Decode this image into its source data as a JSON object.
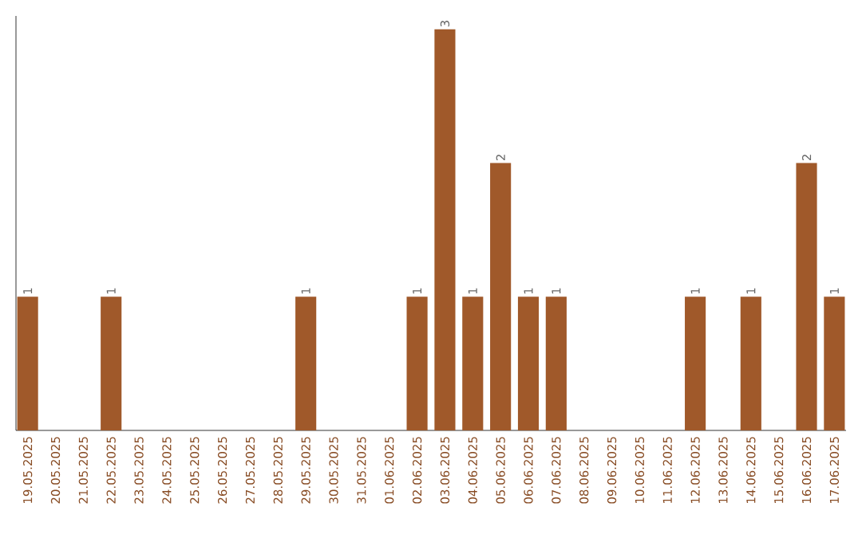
{
  "chart_data": {
    "type": "bar",
    "categories": [
      "19.05.2025",
      "20.05.2025",
      "21.05.2025",
      "22.05.2025",
      "23.05.2025",
      "24.05.2025",
      "25.05.2025",
      "26.05.2025",
      "27.05.2025",
      "28.05.2025",
      "29.05.2025",
      "30.05.2025",
      "31.05.2025",
      "01.06.2025",
      "02.06.2025",
      "03.06.2025",
      "04.06.2025",
      "05.06.2025",
      "06.06.2025",
      "07.06.2025",
      "08.06.2025",
      "09.06.2025",
      "10.06.2025",
      "11.06.2025",
      "12.06.2025",
      "13.06.2025",
      "14.06.2025",
      "15.06.2025",
      "16.06.2025",
      "17.06.2025"
    ],
    "values": [
      1,
      0,
      0,
      1,
      0,
      0,
      0,
      0,
      0,
      0,
      1,
      0,
      0,
      0,
      1,
      3,
      1,
      2,
      1,
      1,
      0,
      0,
      0,
      0,
      1,
      0,
      1,
      0,
      2,
      1
    ],
    "value_labels": [
      "1",
      null,
      null,
      "1",
      null,
      null,
      null,
      null,
      null,
      null,
      "1",
      null,
      null,
      null,
      "1",
      "3",
      "1",
      "2",
      "1",
      "1",
      null,
      null,
      null,
      null,
      "1",
      null,
      "1",
      null,
      "2",
      "1"
    ],
    "color": "#a0592a",
    "ylim": [
      0,
      3.1
    ],
    "tick_labels": "x"
  }
}
